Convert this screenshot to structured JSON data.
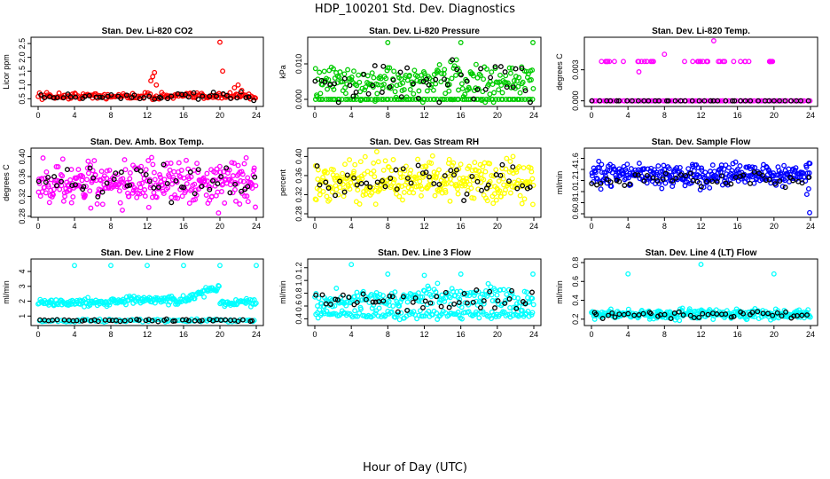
{
  "figure": {
    "title": "HDP_100201  Std. Dev. Diagnostics",
    "xlabel": "Hour of Day (UTC)"
  },
  "chart_data": [
    {
      "type": "scatter",
      "title": "Stan. Dev. Li-820 CO2",
      "ylabel": "Licor ppm",
      "xlim": [
        0,
        24
      ],
      "ylim": [
        0.35,
        2.6
      ],
      "xticks": [
        "0",
        "4",
        "8",
        "12",
        "16",
        "20",
        "24"
      ],
      "yticks": [
        "0.5",
        "1.0",
        "1.5",
        "2.0",
        "2.5"
      ],
      "series": [
        {
          "name": "all",
          "color": "#ff0000",
          "base": 0.6,
          "spread": 0.06,
          "count": 170
        },
        {
          "name": "hourly",
          "color": "#000000",
          "base": 0.58,
          "spread": 0.06,
          "count": 48
        }
      ],
      "outliers": [
        [
          12.4,
          1.15
        ],
        [
          12.6,
          1.3
        ],
        [
          12.8,
          1.45
        ],
        [
          13.0,
          1.0
        ],
        [
          20.0,
          2.55
        ],
        [
          20.3,
          1.5
        ],
        [
          21.6,
          0.9
        ],
        [
          22.0,
          1.0
        ],
        [
          22.4,
          0.8
        ]
      ]
    },
    {
      "type": "scatter",
      "title": "Stan. Dev. Li-820 Pressure",
      "ylabel": "kPa",
      "xlim": [
        0,
        24
      ],
      "ylim": [
        -0.001,
        0.0165
      ],
      "xticks": [
        "0",
        "4",
        "8",
        "12",
        "16",
        "20",
        "24"
      ],
      "yticks": [
        "0.000",
        "0.010"
      ],
      "series": [
        {
          "name": "all",
          "color": "#00cc00",
          "base": 0.005,
          "spread": 0.0025,
          "count": 220
        },
        {
          "name": "zero",
          "color": "#00cc00",
          "base": 0.0,
          "spread": 0.0,
          "count": 90
        },
        {
          "name": "hourly",
          "color": "#000000",
          "base": 0.004,
          "spread": 0.003,
          "count": 48
        }
      ],
      "outliers": [
        [
          8.0,
          0.016
        ],
        [
          16.0,
          0.016
        ],
        [
          23.9,
          0.016
        ]
      ]
    },
    {
      "type": "scatter",
      "title": "Stan. Dev. Li-820 Temp.",
      "ylabel": "degrees C",
      "xlim": [
        0,
        24
      ],
      "ylim": [
        -0.0002,
        0.0058
      ],
      "xticks": [
        "0",
        "4",
        "8",
        "12",
        "16",
        "20",
        "24"
      ],
      "yticks": [
        "0.000",
        "0.003"
      ],
      "series": [
        {
          "name": "zero",
          "color": "#ff00ff",
          "base": 0.0,
          "spread": 0.0,
          "count": 100
        },
        {
          "name": "level",
          "color": "#ff00ff",
          "base": 0.0038,
          "spread": 0.0,
          "count": 45
        },
        {
          "name": "hourly",
          "color": "#000000",
          "base": 0.0,
          "spread": 0.0,
          "count": 40
        }
      ],
      "outliers": [
        [
          5.2,
          0.0028
        ],
        [
          8.0,
          0.0045
        ],
        [
          13.4,
          0.0058
        ],
        [
          10.2,
          0.0038
        ]
      ]
    },
    {
      "type": "scatter",
      "title": "Stan. Dev. Amb. Box Temp.",
      "ylabel": "degrees C",
      "xlim": [
        0,
        24
      ],
      "ylim": [
        0.285,
        0.41
      ],
      "xticks": [
        "0",
        "4",
        "8",
        "12",
        "16",
        "20",
        "24"
      ],
      "yticks": [
        "0.28",
        "0.32",
        "0.36",
        "0.40"
      ],
      "series": [
        {
          "name": "all",
          "color": "#ff00ff",
          "base": 0.347,
          "spread": 0.02,
          "count": 320
        },
        {
          "name": "hourly",
          "color": "#000000",
          "base": 0.347,
          "spread": 0.015,
          "count": 48
        }
      ],
      "outliers": []
    },
    {
      "type": "scatter",
      "title": "Stan. Dev. Gas Stream RH",
      "ylabel": "percent",
      "xlim": [
        0,
        24
      ],
      "ylim": [
        0.28,
        0.41
      ],
      "xticks": [
        "0",
        "4",
        "8",
        "12",
        "16",
        "20",
        "24"
      ],
      "yticks": [
        "0.28",
        "0.32",
        "0.36",
        "0.40"
      ],
      "series": [
        {
          "name": "all",
          "color": "#ffff00",
          "base": 0.35,
          "spread": 0.022,
          "count": 320
        },
        {
          "name": "hourly",
          "color": "#000000",
          "base": 0.35,
          "spread": 0.018,
          "count": 48
        }
      ],
      "outliers": []
    },
    {
      "type": "scatter",
      "title": "Stan. Dev. Sample Flow",
      "ylabel": "ml/min",
      "xlim": [
        0,
        24
      ],
      "ylim": [
        0.6,
        1.72
      ],
      "xticks": [
        "0",
        "4",
        "8",
        "12",
        "16",
        "20",
        "24"
      ],
      "yticks": [
        "0.6",
        "0.8",
        "1.0",
        "1.2",
        "1.4",
        "1.6"
      ],
      "series": [
        {
          "name": "all",
          "color": "#0000ff",
          "base": 1.3,
          "spread": 0.1,
          "count": 320
        },
        {
          "name": "hourly",
          "color": "#000000",
          "base": 1.2,
          "spread": 0.06,
          "count": 48
        }
      ],
      "outliers": [
        [
          23.9,
          0.62
        ],
        [
          23.6,
          0.95
        ],
        [
          23.8,
          1.05
        ]
      ]
    },
    {
      "type": "scatter",
      "title": "Stan. Dev. Line 2 Flow",
      "ylabel": "ml/min",
      "xlim": [
        0,
        24
      ],
      "ylim": [
        0.6,
        4.6
      ],
      "xticks": [
        "0",
        "4",
        "8",
        "12",
        "16",
        "20",
        "24"
      ],
      "yticks": [
        "1",
        "2",
        "3",
        "4"
      ],
      "series": [
        {
          "name": "all",
          "color": "#00ffff",
          "base": 1.9,
          "spread": 0.12,
          "count": 240
        },
        {
          "name": "low",
          "color": "#00ffff",
          "base": 0.7,
          "spread": 0.05,
          "count": 90
        },
        {
          "name": "hourly",
          "color": "#000000",
          "base": 0.72,
          "spread": 0.04,
          "count": 48
        }
      ],
      "outliers": [
        [
          4.0,
          4.4
        ],
        [
          8.0,
          4.4
        ],
        [
          12.0,
          4.4
        ],
        [
          16.0,
          4.4
        ],
        [
          20.0,
          4.4
        ],
        [
          24.0,
          4.4
        ]
      ]
    },
    {
      "type": "scatter",
      "title": "Stan. Dev. Line 3 Flow",
      "ylabel": "ml/min",
      "xlim": [
        0,
        24
      ],
      "ylim": [
        0.35,
        1.28
      ],
      "xticks": [
        "0",
        "4",
        "8",
        "12",
        "16",
        "20",
        "24"
      ],
      "yticks": [
        "0.4",
        "0.6",
        "0.8",
        "1.0",
        "1.2"
      ],
      "series": [
        {
          "name": "all",
          "color": "#00ffff",
          "base": 0.68,
          "spread": 0.08,
          "count": 200
        },
        {
          "name": "low",
          "color": "#00ffff",
          "base": 0.47,
          "spread": 0.035,
          "count": 140
        },
        {
          "name": "hourly",
          "color": "#000000",
          "base": 0.7,
          "spread": 0.08,
          "count": 48
        }
      ],
      "outliers": [
        [
          4.0,
          1.25
        ],
        [
          8.0,
          1.1
        ],
        [
          12.0,
          1.08
        ],
        [
          16.0,
          1.1
        ],
        [
          23.9,
          1.1
        ],
        [
          19.0,
          0.95
        ]
      ]
    },
    {
      "type": "scatter",
      "title": "Stan. Dev. Line 4 (LT) Flow",
      "ylabel": "ml/min",
      "xlim": [
        0,
        24
      ],
      "ylim": [
        0.17,
        0.8
      ],
      "xticks": [
        "0",
        "4",
        "8",
        "12",
        "16",
        "20",
        "24"
      ],
      "yticks": [
        "0.2",
        "0.4",
        "0.6",
        "0.8"
      ],
      "series": [
        {
          "name": "all",
          "color": "#00ffff",
          "base": 0.25,
          "spread": 0.025,
          "count": 300
        },
        {
          "name": "hourly",
          "color": "#000000",
          "base": 0.25,
          "spread": 0.02,
          "count": 48
        }
      ],
      "outliers": [
        [
          4.0,
          0.68
        ],
        [
          12.0,
          0.78
        ],
        [
          20.0,
          0.68
        ]
      ]
    }
  ]
}
